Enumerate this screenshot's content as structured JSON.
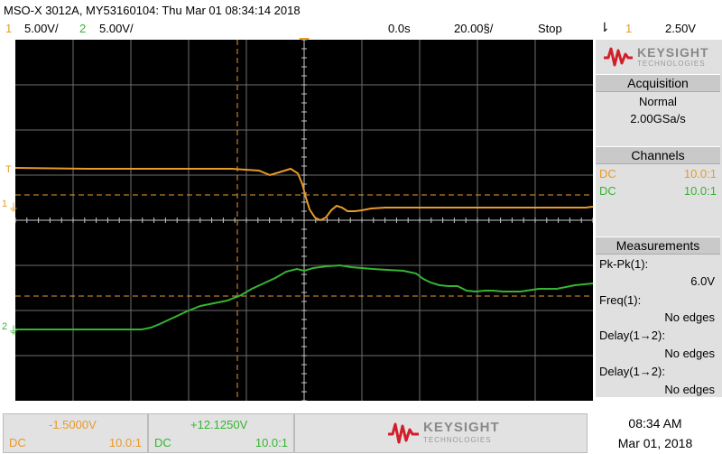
{
  "header": {
    "title": "MSO-X 3012A, MY53160104: Thu Mar 01 08:34:14 2018",
    "ch1_num": "1",
    "ch1_scale": "5.00V/",
    "ch2_num": "2",
    "ch2_scale": "5.00V/",
    "time_pos": "0.0s",
    "time_scale": "20.00§/",
    "run_state": "Stop",
    "trigger_ch": "1",
    "trigger_level": "2.50V"
  },
  "colors": {
    "ch1": "#e89a2b",
    "ch2": "#36b432",
    "grid": "#7a7a7a",
    "logo": "#d11f2a"
  },
  "side": {
    "brand": "KEYSIGHT",
    "brand_sub": "TECHNOLOGIES",
    "acquisition_title": "Acquisition",
    "acq_mode": "Normal",
    "acq_rate": "2.00GSa/s",
    "channels_title": "Channels",
    "ch1_coupling": "DC",
    "ch1_probe": "10.0:1",
    "ch2_coupling": "DC",
    "ch2_probe": "10.0:1",
    "measurements_title": "Measurements",
    "m1_label": "Pk-Pk(1):",
    "m1_value": "6.0V",
    "m2_label": "Freq(1):",
    "m2_value": "No edges",
    "m3_label": "Delay(1→2):",
    "m3_value": "No edges",
    "m4_label": "Delay(1→2):",
    "m4_value": "No edges"
  },
  "bottom": {
    "ch1_offset": "-1.5000V",
    "ch1_coupling": "DC",
    "ch1_probe": "10.0:1",
    "ch2_offset": "+12.1250V",
    "ch2_coupling": "DC",
    "ch2_probe": "10.0:1",
    "time": "08:34 AM",
    "date": "Mar 01, 2018"
  },
  "markers": {
    "trig_t": "T",
    "ch1_ground": "1",
    "ch2_ground": "2"
  }
}
